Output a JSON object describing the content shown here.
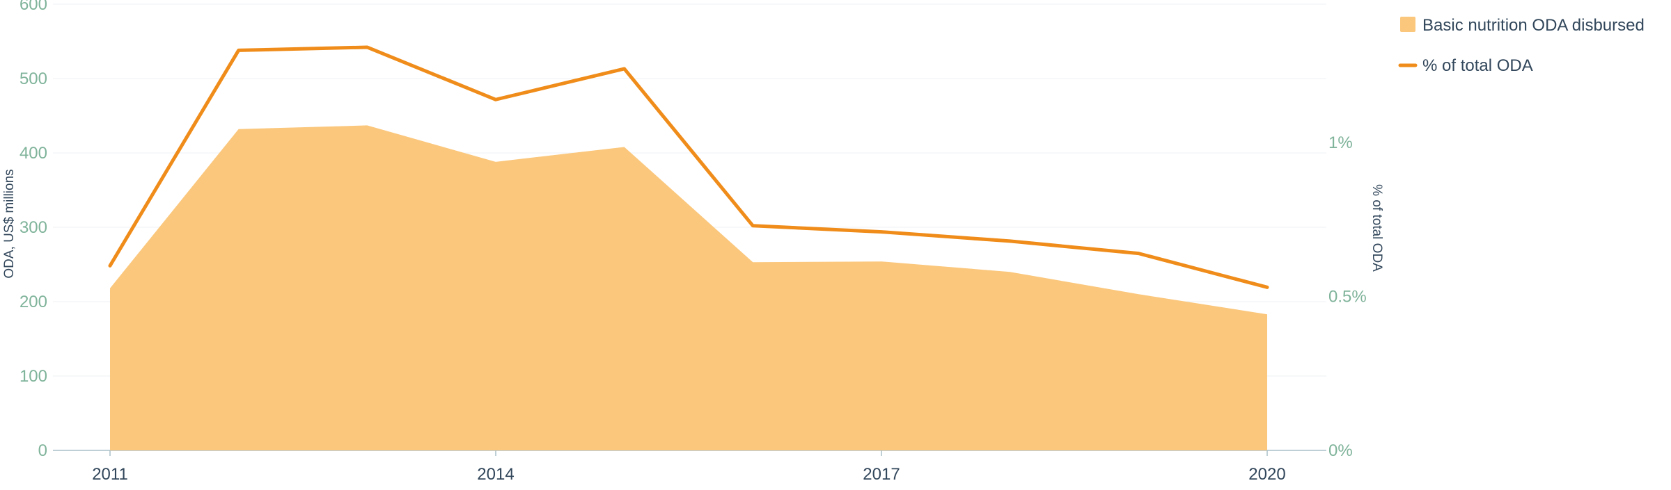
{
  "chart_data": {
    "type": "area",
    "categories": [
      "2011",
      "2012",
      "2013",
      "2014",
      "2015",
      "2016",
      "2017",
      "2018",
      "2019",
      "2020"
    ],
    "x_tick_labels": [
      "2011",
      "2014",
      "2017",
      "2020"
    ],
    "series": [
      {
        "name": "Basic nutrition ODA disbursed",
        "type": "area",
        "axis": "left",
        "color": "#fbc77c",
        "values": [
          218,
          432,
          437,
          388,
          408,
          253,
          254,
          240,
          210,
          183
        ]
      },
      {
        "name": "% of total ODA",
        "type": "line",
        "axis": "right",
        "color": "#ef8c1a",
        "values": [
          0.6,
          1.3,
          1.31,
          1.14,
          1.24,
          0.73,
          0.71,
          0.68,
          0.64,
          0.53
        ]
      }
    ],
    "left_axis": {
      "label": "ODA, US$ millions",
      "ylim": [
        0,
        600
      ],
      "ticks": [
        "0",
        "100",
        "200",
        "300",
        "400",
        "500",
        "600"
      ]
    },
    "right_axis": {
      "label": "% of total ODA",
      "ylim": [
        0,
        1.45
      ],
      "ticks": [
        {
          "value": 0,
          "label": "0%"
        },
        {
          "value": 0.5,
          "label": "0.5%"
        },
        {
          "value": 1,
          "label": "1%"
        }
      ]
    },
    "grid": true,
    "legend_position": "top-right"
  }
}
